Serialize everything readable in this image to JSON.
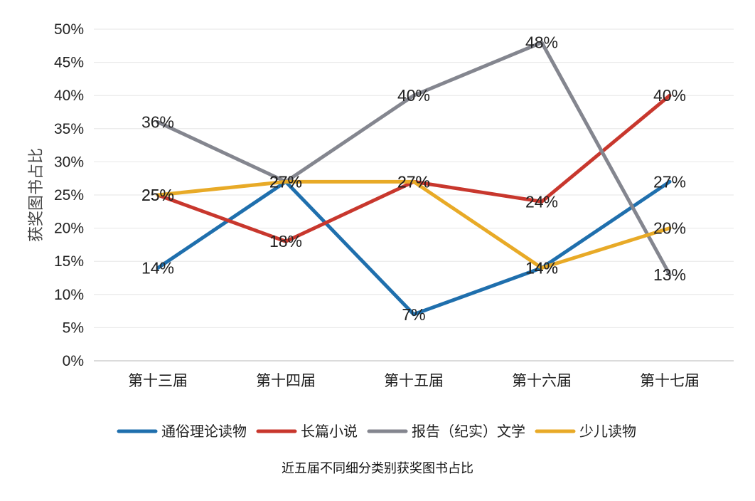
{
  "chart_data": {
    "type": "line",
    "title": "",
    "caption": "近五届不同细分类别获奖图书占比",
    "xlabel": "",
    "ylabel": "获奖图书占比",
    "categories": [
      "第十三届",
      "第十四届",
      "第十五届",
      "第十六届",
      "第十七届"
    ],
    "ylim": [
      0,
      50
    ],
    "yticks": [
      "0%",
      "5%",
      "10%",
      "15%",
      "20%",
      "25%",
      "30%",
      "35%",
      "40%",
      "45%",
      "50%"
    ],
    "grid": true,
    "legend_position": "bottom",
    "series": [
      {
        "name": "通俗理论读物",
        "color": "#1f6fad",
        "values": [
          14,
          27,
          7,
          14,
          27
        ],
        "labels": [
          "14%",
          "27%",
          "7%",
          "14%",
          "27%"
        ]
      },
      {
        "name": "长篇小说",
        "color": "#c8372d",
        "values": [
          25,
          18,
          27,
          24,
          40
        ],
        "labels": [
          "25%",
          "18%",
          "27%",
          "24%",
          "40%"
        ]
      },
      {
        "name": "报告（纪实）文学",
        "color": "#84868f",
        "values": [
          36,
          27,
          40,
          48,
          13
        ],
        "labels": [
          "36%",
          "27%",
          "40%",
          "48%",
          "13%"
        ]
      },
      {
        "name": "少儿读物",
        "color": "#e8aa27",
        "values": [
          25,
          27,
          27,
          14,
          20
        ],
        "labels": [
          "25%",
          "27%",
          "27%",
          "14%",
          "20%"
        ]
      }
    ]
  }
}
